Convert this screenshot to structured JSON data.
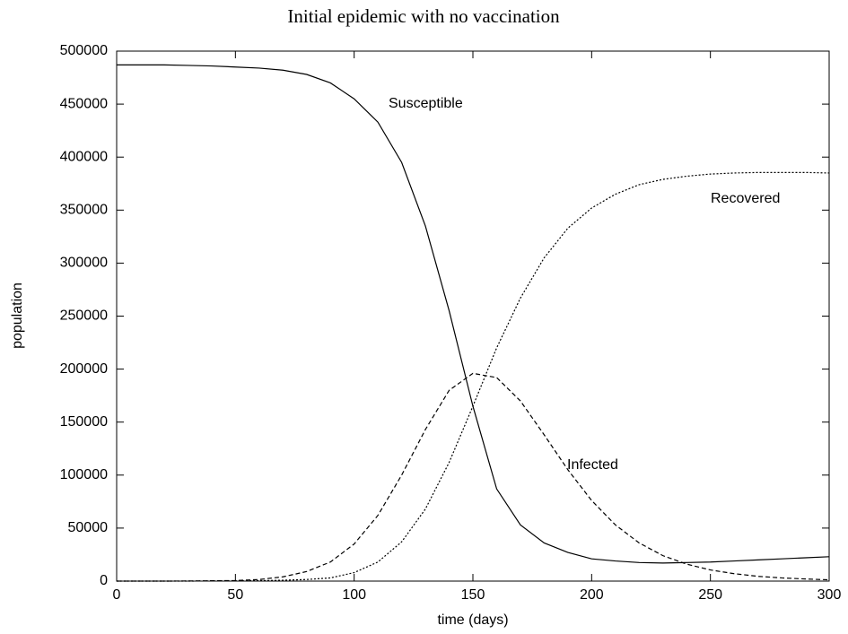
{
  "chart_data": {
    "type": "line",
    "title": "Initial epidemic with no vaccination",
    "x_label": "time (days)",
    "y_label": "population",
    "x": [
      0,
      10,
      20,
      30,
      40,
      50,
      60,
      70,
      80,
      90,
      100,
      110,
      120,
      130,
      140,
      150,
      160,
      170,
      180,
      190,
      200,
      210,
      220,
      230,
      240,
      250,
      260,
      270,
      280,
      290,
      300
    ],
    "series": [
      {
        "name": "Susceptible",
        "color": "#000000",
        "linestyle": "solid",
        "values": [
          487000,
          487000,
          487000,
          486500,
          486000,
          485000,
          484000,
          482000,
          478000,
          470000,
          455000,
          433000,
          395000,
          335000,
          255000,
          165000,
          87000,
          53000,
          36000,
          27000,
          21000,
          19000,
          17500,
          17000,
          17500,
          18000,
          19000,
          20000,
          21000,
          22000,
          23000
        ]
      },
      {
        "name": "Infected",
        "color": "#000000",
        "linestyle": "dashed",
        "values": [
          0,
          0,
          0,
          100,
          300,
          500,
          1500,
          4000,
          9000,
          18000,
          35000,
          62000,
          100000,
          143000,
          180000,
          196000,
          192000,
          170000,
          138000,
          105000,
          76000,
          53000,
          36000,
          24000,
          16000,
          10500,
          7000,
          4500,
          3000,
          2000,
          1200
        ]
      },
      {
        "name": "Recovered",
        "color": "#000000",
        "linestyle": "dotted",
        "values": [
          0,
          0,
          0,
          0,
          100,
          200,
          400,
          800,
          1500,
          3000,
          8000,
          18000,
          37000,
          68000,
          112000,
          165000,
          220000,
          267000,
          305000,
          333000,
          352000,
          365000,
          374000,
          379000,
          382000,
          384000,
          385000,
          385500,
          385500,
          385500,
          385000
        ]
      }
    ],
    "xlim": [
      0,
      300
    ],
    "xticks": [
      0,
      50,
      100,
      150,
      200,
      250,
      300
    ],
    "ylim": [
      0,
      500000
    ],
    "yticks": [
      0,
      50000,
      100000,
      150000,
      200000,
      250000,
      300000,
      350000,
      400000,
      450000,
      500000
    ]
  }
}
